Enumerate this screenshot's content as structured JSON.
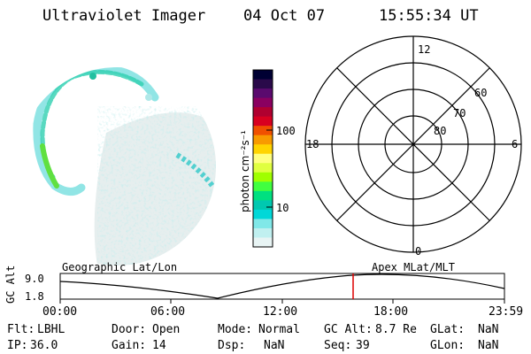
{
  "header": {
    "instrument": "Ultraviolet Imager",
    "date": "04 Oct 07",
    "time": "15:55:34 UT"
  },
  "colorbar": {
    "unit_label": "photon cm⁻²s⁻¹",
    "ticks": [
      "100",
      "10"
    ],
    "colors": [
      "#000033",
      "#2a0a4a",
      "#5a0a6e",
      "#8a0060",
      "#b00030",
      "#d80020",
      "#f05000",
      "#f89a00",
      "#ffd400",
      "#ffff80",
      "#e0ff40",
      "#a0ff00",
      "#40ff40",
      "#00e080",
      "#00c8b0",
      "#00d8d8",
      "#80e8e8",
      "#c0f0f0",
      "#e8f4f4"
    ]
  },
  "polar_grid": {
    "mlt_labels": {
      "top": "12",
      "left": "18",
      "right": "6",
      "bottom": "0"
    },
    "lat_labels": [
      "60",
      "70",
      "80"
    ]
  },
  "timeline": {
    "left_label": "Geographic Lat/Lon",
    "right_label": "Apex MLat/MLT",
    "axis_title": "GC Alt",
    "y_ticks": [
      "9.0",
      "1.8"
    ],
    "x_ticks": [
      "00:00",
      "06:00",
      "12:00",
      "18:00",
      "23:59"
    ],
    "cursor_color": "#dd0000"
  },
  "info": {
    "flt_label": "Flt:",
    "flt_value": "LBHL",
    "ip_label": "IP:",
    "ip_value": "36.0",
    "door_label": "Door:",
    "door_value": "Open",
    "gain_label": "Gain:",
    "gain_value": "14",
    "mode_label": "Mode:",
    "mode_value": "Normal",
    "dsp_label": "Dsp:",
    "dsp_value": "NaN",
    "gcalt_label": "GC Alt:",
    "gcalt_value": "8.7 Re",
    "seq_label": "Seq:",
    "seq_value": "39",
    "glat_label": "GLat:",
    "glat_value": "NaN",
    "glon_label": "GLon:",
    "glon_value": "NaN"
  }
}
